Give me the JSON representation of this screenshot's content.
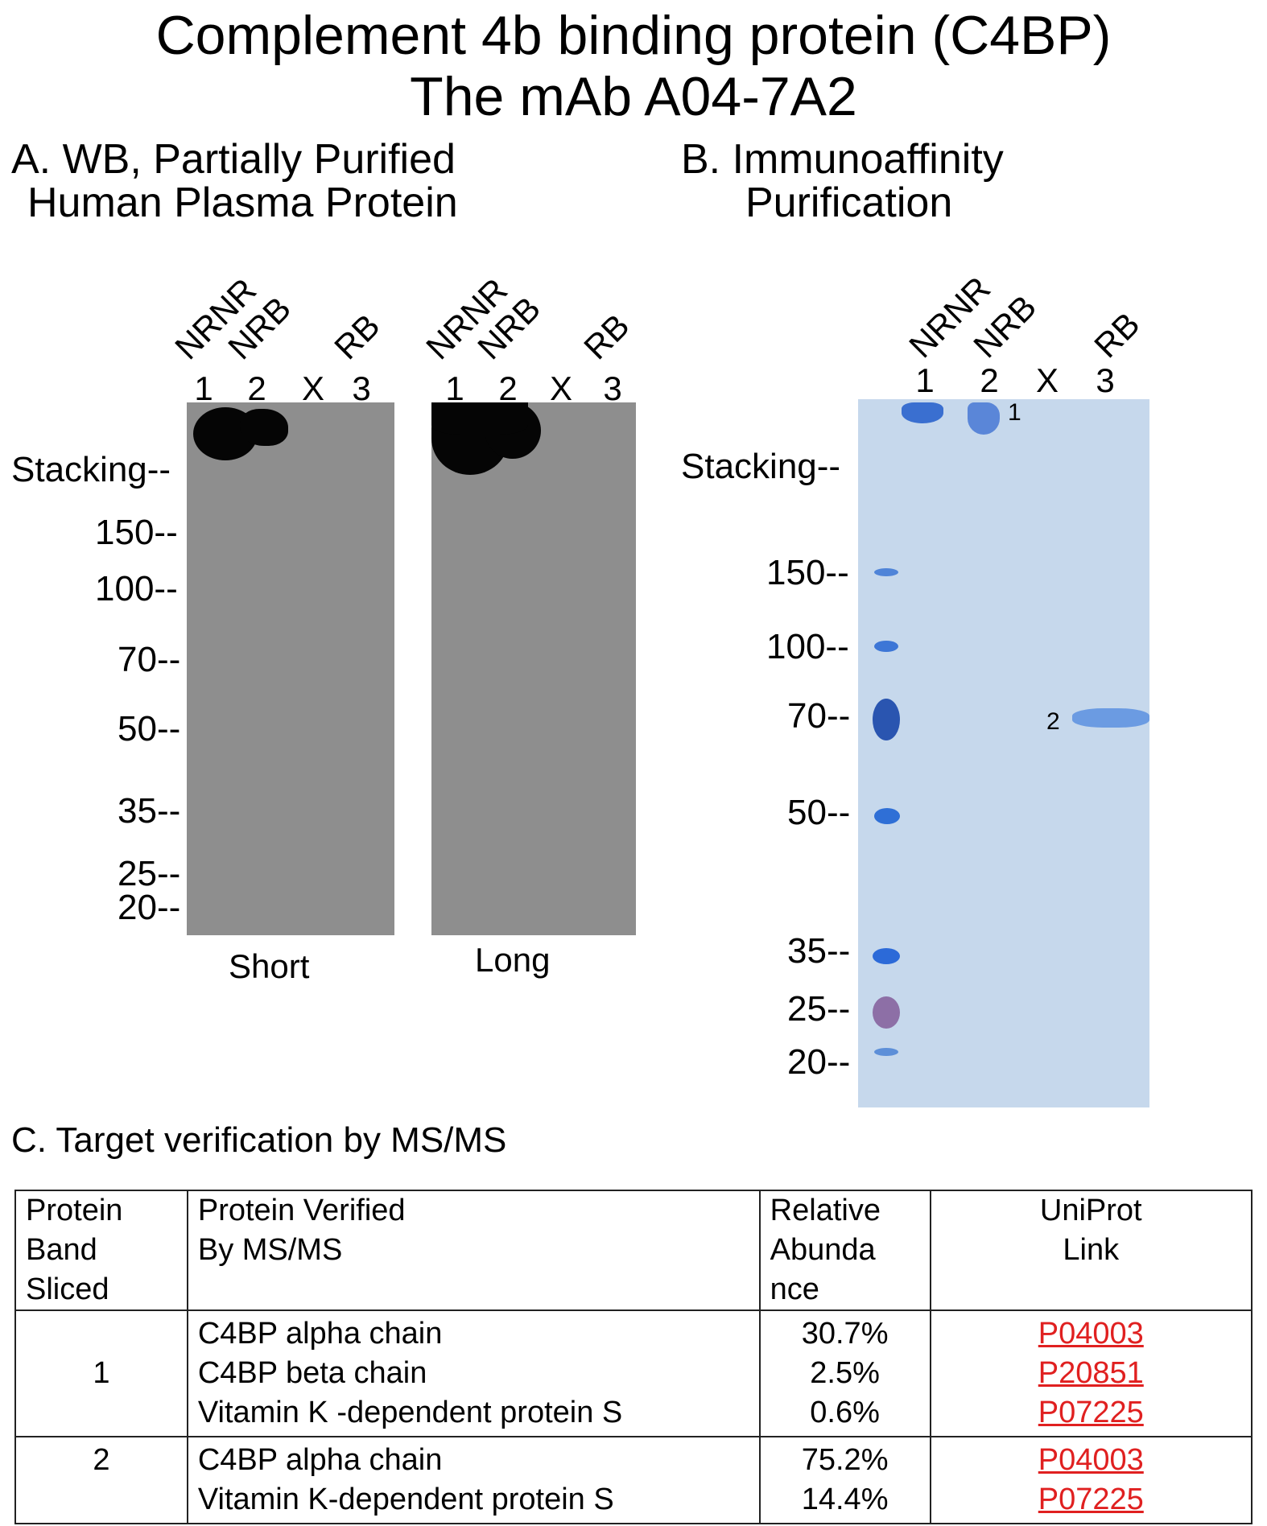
{
  "title": {
    "line1": "Complement 4b binding protein (C4BP)",
    "line2": "The mAb A04-7A2"
  },
  "panel_a": {
    "title_line1": "A. WB, Partially Purified",
    "title_line2": "Human Plasma Protein",
    "lanes": [
      {
        "top": "NRNR",
        "num": "1"
      },
      {
        "top": "NRB",
        "num": "2"
      },
      {
        "top": "",
        "num": "X"
      },
      {
        "top": "RB",
        "num": "3"
      }
    ],
    "markers": [
      "Stacking--",
      "150--",
      "100--",
      "70--",
      "50--",
      "35--",
      "25--",
      "20--"
    ],
    "captions": {
      "short": "Short",
      "long": "Long"
    }
  },
  "panel_b": {
    "title_line1": "B. Immunoaffinity",
    "title_line2": "Purification",
    "lanes": [
      {
        "top": "NRNR",
        "num": "1"
      },
      {
        "top": "NRB",
        "num": "2"
      },
      {
        "top": "",
        "num": "X"
      },
      {
        "top": "RB",
        "num": "3"
      }
    ],
    "markers": [
      "Stacking--",
      "150--",
      "100--",
      "70--",
      "50--",
      "35--",
      "25--",
      "20--"
    ],
    "band_tags": [
      "1",
      "2"
    ]
  },
  "panel_c": {
    "title": "C. Target verification by MS/MS",
    "headers": {
      "band": [
        "Protein",
        "Band",
        "Sliced"
      ],
      "protein": [
        "Protein Verified",
        "By MS/MS"
      ],
      "abundance": [
        "Relative",
        "Abunda",
        "nce"
      ],
      "uniprot": [
        "UniProt",
        "Link"
      ]
    },
    "rows": [
      {
        "band": "1",
        "proteins": [
          "C4BP alpha chain",
          "C4BP beta chain",
          "Vitamin K -dependent protein S"
        ],
        "abundance": [
          "30.7%",
          "2.5%",
          "0.6%"
        ],
        "links": [
          "P04003",
          "P20851",
          "P07225"
        ]
      },
      {
        "band": "2",
        "proteins": [
          "C4BP alpha chain",
          "Vitamin K-dependent protein S"
        ],
        "abundance": [
          "75.2%",
          "14.4%"
        ],
        "links": [
          "P04003",
          "P07225"
        ]
      }
    ],
    "link_color": "#e02020"
  }
}
